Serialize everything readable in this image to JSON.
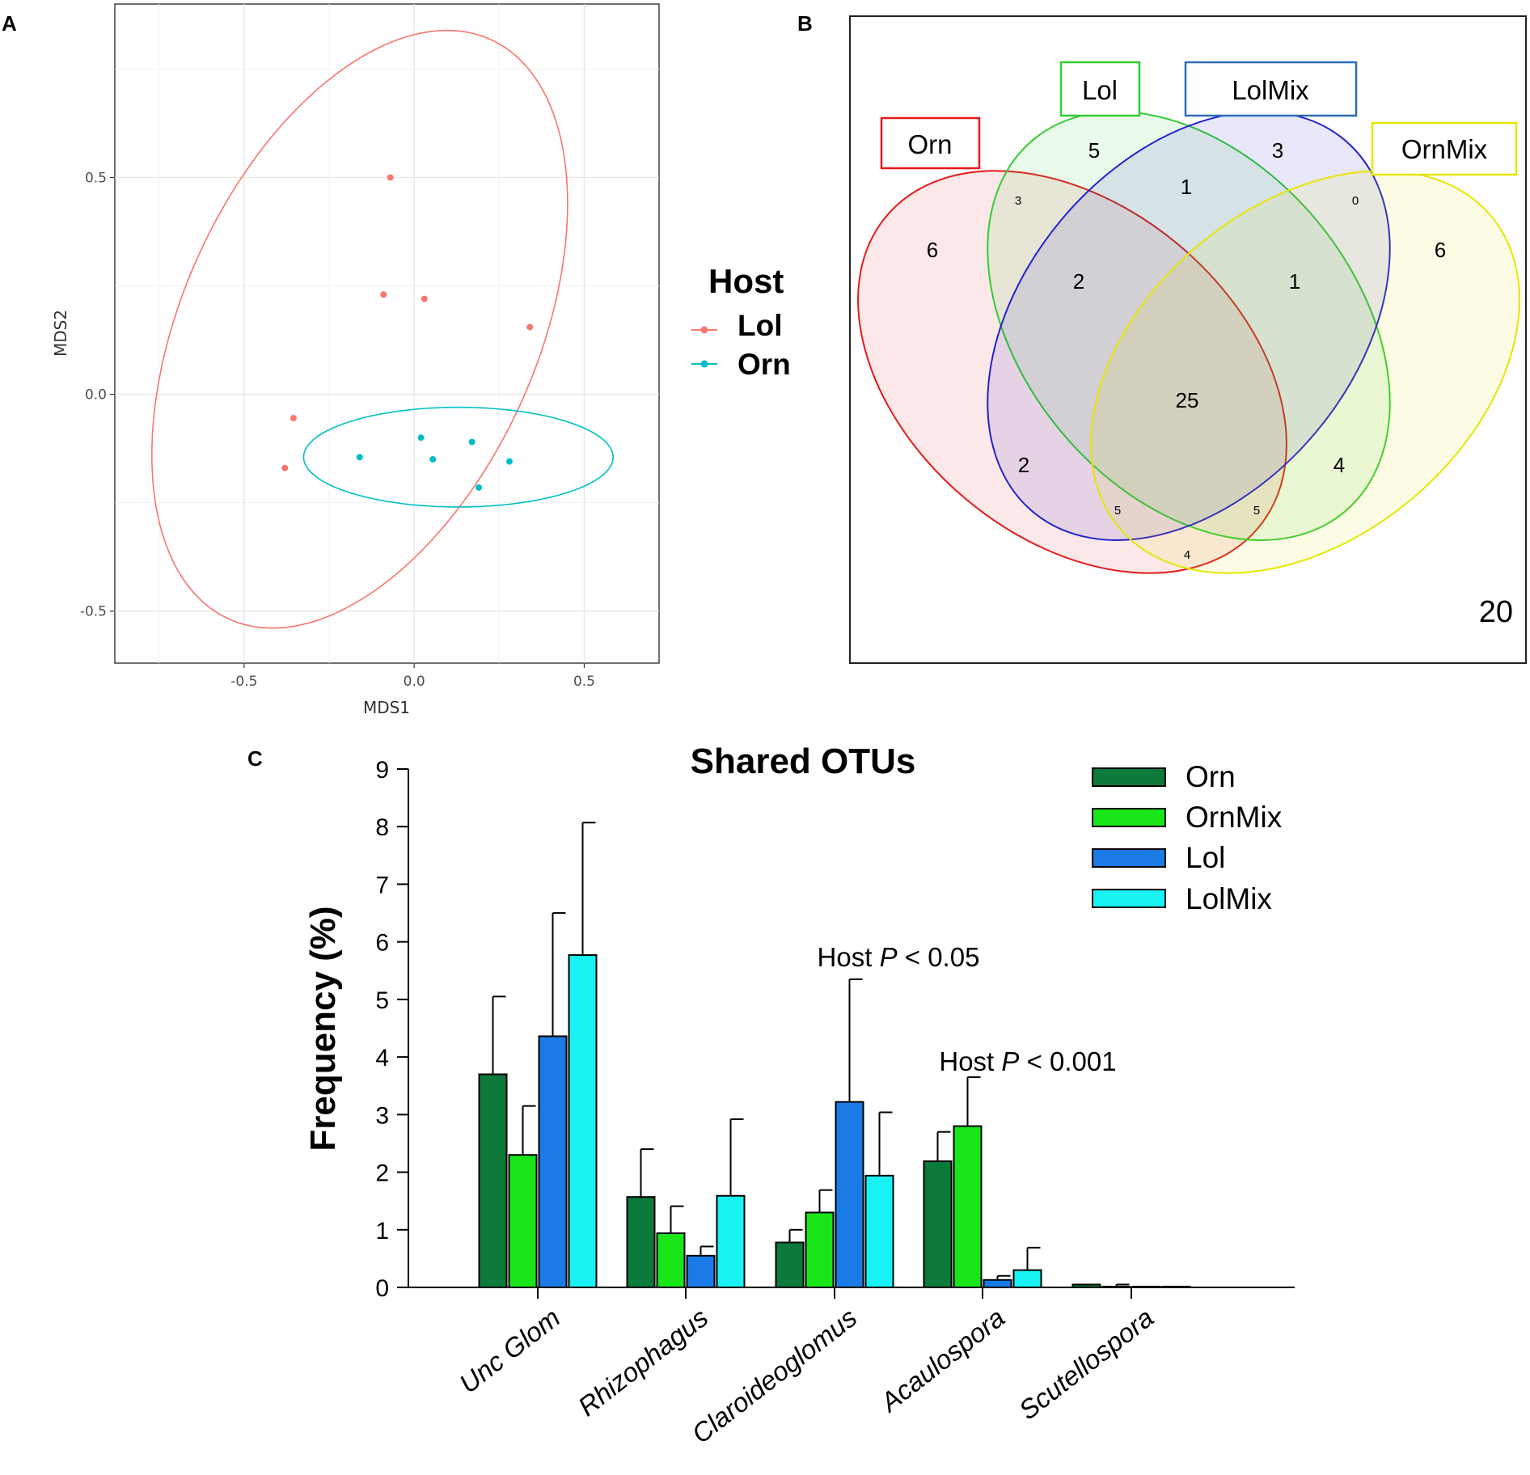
{
  "panels": {
    "a": "A",
    "b": "B",
    "c": "C"
  },
  "chart_data": [
    {
      "type": "scatter",
      "panel": "A",
      "xlabel": "MDS1",
      "ylabel": "MDS2",
      "xlim": [
        -0.88,
        0.72
      ],
      "ylim": [
        -0.62,
        0.9
      ],
      "xticks": [
        -0.5,
        0.0,
        0.5
      ],
      "xtick_labels": [
        "-0.5",
        "0.0",
        "0.5"
      ],
      "yticks": [
        -0.5,
        0.0,
        0.5
      ],
      "ytick_labels": [
        "-0.5",
        "0.0",
        "0.5"
      ],
      "grid": true,
      "legend": {
        "title": "Host",
        "position": "right"
      },
      "series": [
        {
          "name": "Lol",
          "color": "#F8766D",
          "points": [
            [
              -0.07,
              0.5
            ],
            [
              -0.09,
              0.23
            ],
            [
              0.03,
              0.22
            ],
            [
              0.34,
              0.155
            ],
            [
              -0.355,
              -0.055
            ],
            [
              -0.38,
              -0.17
            ]
          ],
          "ellipse": {
            "cx": -0.16,
            "cy": 0.15,
            "rx": 0.78,
            "ry": 0.49,
            "angle_deg": 53
          }
        },
        {
          "name": "Orn",
          "color": "#00BFC4",
          "points": [
            [
              0.02,
              -0.1
            ],
            [
              0.17,
              -0.11
            ],
            [
              -0.16,
              -0.145
            ],
            [
              0.055,
              -0.15
            ],
            [
              0.28,
              -0.155
            ],
            [
              0.19,
              -0.215
            ]
          ],
          "ellipse": {
            "cx": 0.13,
            "cy": -0.145,
            "rx": 0.455,
            "ry": 0.115,
            "angle_deg": 0
          }
        }
      ]
    },
    {
      "type": "venn",
      "panel": "B",
      "sets": [
        {
          "name": "Orn",
          "color": "#E41A1C"
        },
        {
          "name": "Lol",
          "color": "#33CC33"
        },
        {
          "name": "LolMix",
          "color": "#2222CC"
        },
        {
          "name": "OrnMix",
          "color": "#E6E600"
        }
      ],
      "regions": [
        {
          "sets": [
            "Orn"
          ],
          "value": 6
        },
        {
          "sets": [
            "Lol"
          ],
          "value": 5
        },
        {
          "sets": [
            "LolMix"
          ],
          "value": 3
        },
        {
          "sets": [
            "OrnMix"
          ],
          "value": 6
        },
        {
          "sets": [
            "Orn",
            "Lol"
          ],
          "value": 3
        },
        {
          "sets": [
            "Lol",
            "LolMix"
          ],
          "value": 1
        },
        {
          "sets": [
            "LolMix",
            "OrnMix"
          ],
          "value": 0
        },
        {
          "sets": [
            "Orn",
            "Lol",
            "LolMix"
          ],
          "value": 2
        },
        {
          "sets": [
            "Lol",
            "LolMix",
            "OrnMix"
          ],
          "value": 1
        },
        {
          "sets": [
            "Orn",
            "Lol",
            "LolMix",
            "OrnMix"
          ],
          "value": 25
        },
        {
          "sets": [
            "Orn",
            "LolMix"
          ],
          "value": 2
        },
        {
          "sets": [
            "Lol",
            "OrnMix"
          ],
          "value": 4
        },
        {
          "sets": [
            "Orn",
            "LolMix",
            "OrnMix"
          ],
          "value": 5
        },
        {
          "sets": [
            "Orn",
            "Lol",
            "OrnMix"
          ],
          "value": 5
        },
        {
          "sets": [
            "Orn",
            "OrnMix"
          ],
          "value": 4
        }
      ],
      "outside": 20
    },
    {
      "type": "bar",
      "panel": "C",
      "title": "Shared OTUs",
      "xlabel": "",
      "ylabel": "Frequency (%)",
      "ylim": [
        0,
        9
      ],
      "yticks": [
        0,
        1,
        2,
        3,
        4,
        5,
        6,
        7,
        8,
        9
      ],
      "categories": [
        "Unc Glom",
        "Rhizophagus",
        "Claroideoglomus",
        "Acaulospora",
        "Scutellospora"
      ],
      "series": [
        {
          "name": "Orn",
          "color": "#0B7A3A",
          "values": [
            3.7,
            1.57,
            0.78,
            2.19,
            0.05
          ],
          "errors": [
            1.35,
            0.83,
            0.22,
            0.51,
            0.0
          ]
        },
        {
          "name": "OrnMix",
          "color": "#19E619",
          "values": [
            2.3,
            0.94,
            1.3,
            2.8,
            0.0
          ],
          "errors": [
            0.85,
            0.47,
            0.39,
            0.85,
            0.05
          ]
        },
        {
          "name": "Lol",
          "color": "#1A7BE6",
          "values": [
            4.36,
            0.55,
            3.22,
            0.13,
            0.01
          ],
          "errors": [
            2.14,
            0.16,
            2.13,
            0.07,
            0.0
          ]
        },
        {
          "name": "LolMix",
          "color": "#19F2F2",
          "values": [
            5.77,
            1.59,
            1.94,
            0.3,
            0.01
          ],
          "errors": [
            2.3,
            1.33,
            1.1,
            0.39,
            0.0
          ]
        }
      ],
      "annotations": [
        {
          "category": "Claroideoglomus",
          "prefix": "Host ",
          "italic": "P",
          "suffix": " < 0.05"
        },
        {
          "category": "Acaulospora",
          "prefix": "Host ",
          "italic": "P",
          "suffix": " < 0.001"
        }
      ],
      "legend": {
        "position": "top-right"
      }
    }
  ]
}
